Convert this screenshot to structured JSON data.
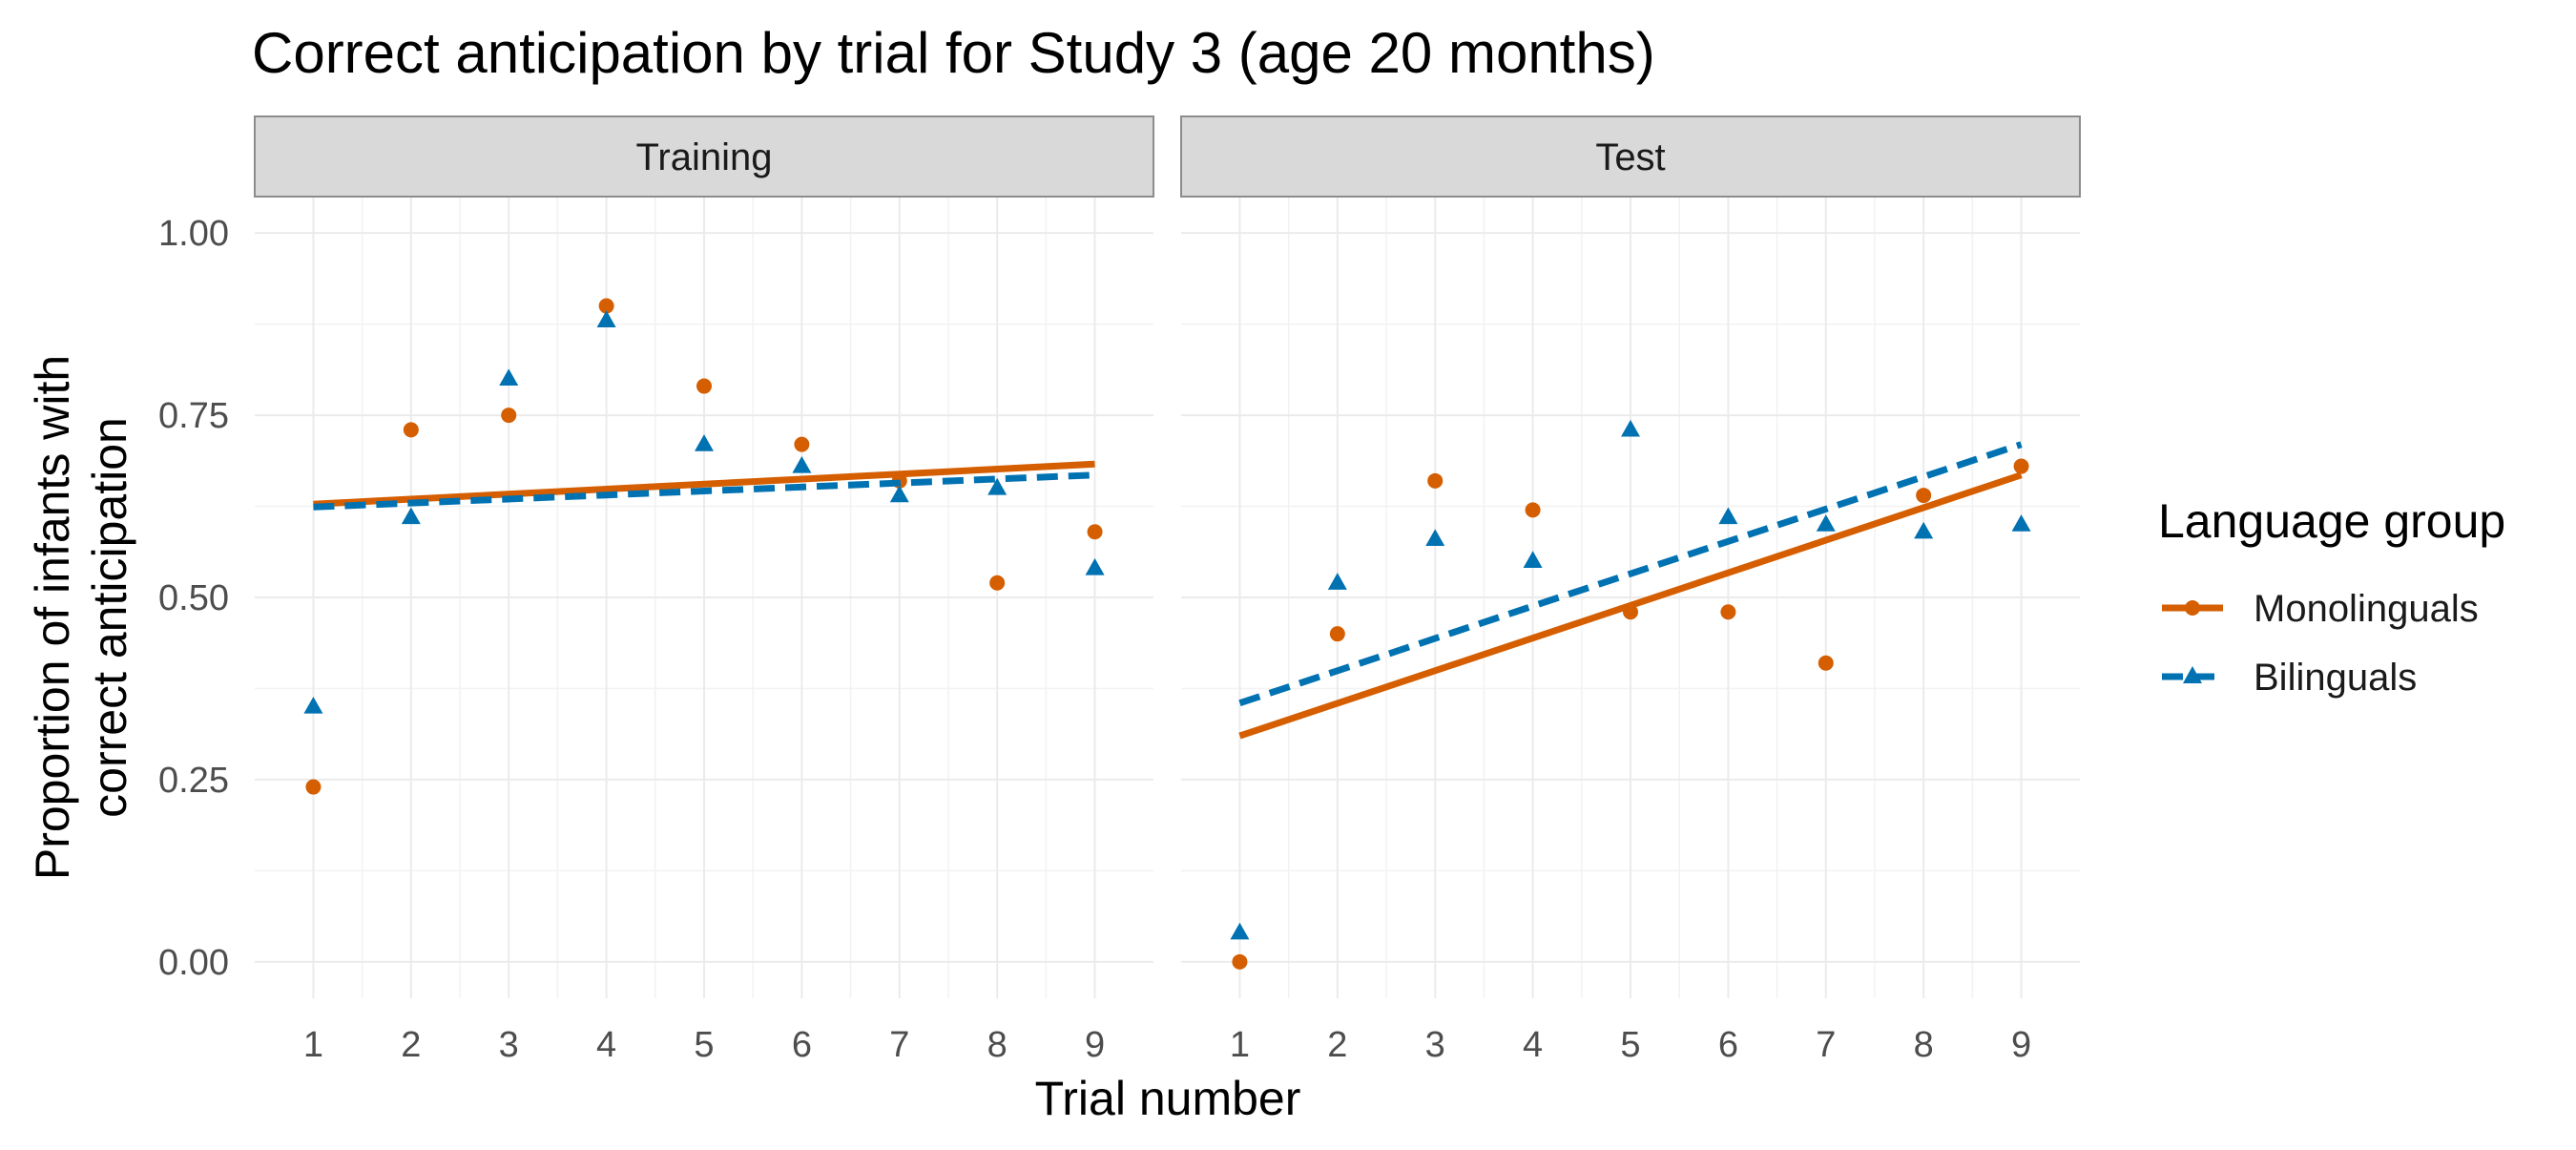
{
  "chart_data": {
    "type": "scatter",
    "title": "Correct anticipation by trial for Study 3 (age 20 months)",
    "xlabel": "Trial number",
    "ylabel_lines": [
      "Proportion of infants with",
      "correct anticipation"
    ],
    "x_ticks": [
      "1",
      "2",
      "3",
      "4",
      "5",
      "6",
      "7",
      "8",
      "9"
    ],
    "y_ticks": [
      "0.00",
      "0.25",
      "0.50",
      "0.75",
      "1.00"
    ],
    "xlim": [
      0.4,
      9.6
    ],
    "ylim": [
      -0.05,
      1.05
    ],
    "grid": true,
    "legend": {
      "title": "Language group",
      "placement": "right",
      "entries": [
        "Monolinguals",
        "Bilinguals"
      ]
    },
    "colors": {
      "Monolinguals": "#D55E00",
      "Bilinguals": "#0072B2"
    },
    "panels": [
      {
        "name": "Training",
        "series": [
          {
            "group": "Monolinguals",
            "marker": "circle",
            "x": [
              1,
              2,
              3,
              4,
              5,
              6,
              7,
              8,
              9
            ],
            "y": [
              0.24,
              0.73,
              0.75,
              0.9,
              0.79,
              0.71,
              0.66,
              0.52,
              0.59
            ],
            "fit": [
              0.628,
              0.683
            ]
          },
          {
            "group": "Bilinguals",
            "marker": "triangle",
            "x": [
              1,
              2,
              3,
              4,
              5,
              6,
              7,
              8,
              9
            ],
            "y": [
              0.35,
              0.61,
              0.8,
              0.88,
              0.71,
              0.68,
              0.64,
              0.65,
              0.54
            ],
            "fit": [
              0.624,
              0.668
            ]
          }
        ]
      },
      {
        "name": "Test",
        "series": [
          {
            "group": "Monolinguals",
            "marker": "circle",
            "x": [
              1,
              2,
              3,
              4,
              5,
              6,
              7,
              8,
              9
            ],
            "y": [
              0.0,
              0.45,
              0.66,
              0.62,
              0.48,
              0.48,
              0.41,
              0.64,
              0.68
            ],
            "fit": [
              0.31,
              0.668
            ]
          },
          {
            "group": "Bilinguals",
            "marker": "triangle",
            "x": [
              1,
              2,
              3,
              4,
              5,
              6,
              7,
              8,
              9
            ],
            "y": [
              0.04,
              0.52,
              0.58,
              0.55,
              0.73,
              0.61,
              0.6,
              0.59,
              0.6
            ],
            "fit": [
              0.355,
              0.71
            ]
          }
        ]
      }
    ]
  }
}
